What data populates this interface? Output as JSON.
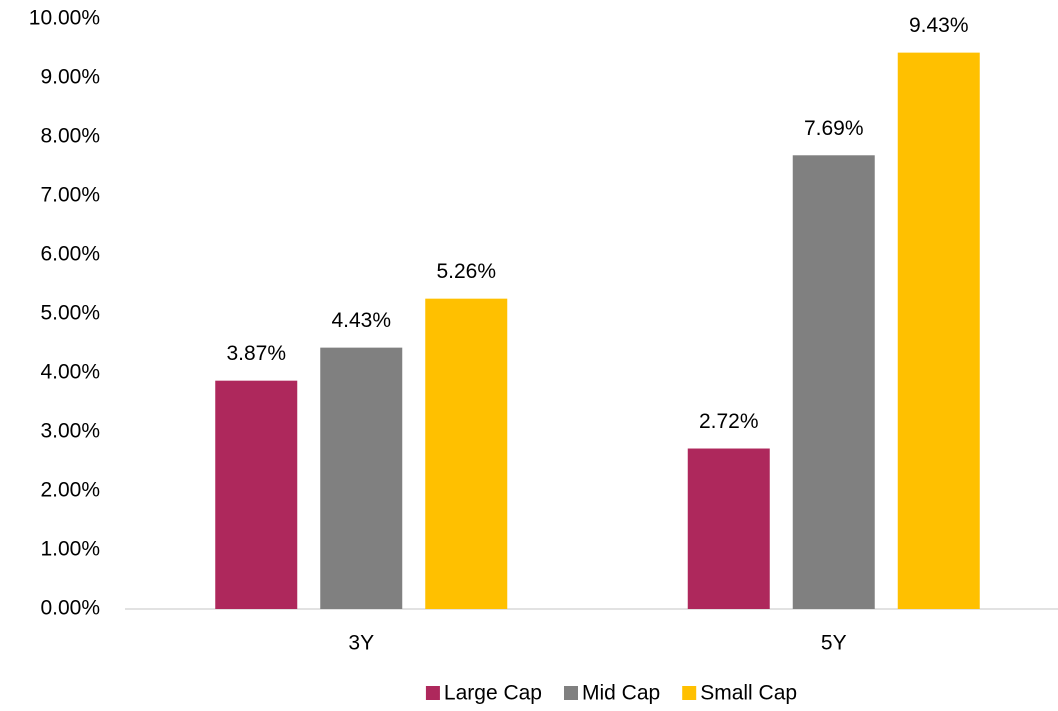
{
  "chart_data": {
    "type": "bar",
    "categories": [
      "3Y",
      "5Y"
    ],
    "series": [
      {
        "name": "Large Cap",
        "color": "#ae285c",
        "values": [
          3.87,
          2.72
        ],
        "value_labels": [
          "3.87%",
          "2.72%"
        ]
      },
      {
        "name": "Mid Cap",
        "color": "#808080",
        "values": [
          4.43,
          7.69
        ],
        "value_labels": [
          "4.43%",
          "7.69%"
        ]
      },
      {
        "name": "Small Cap",
        "color": "#ffc000",
        "values": [
          5.26,
          9.43
        ],
        "value_labels": [
          "5.26%",
          "9.43%"
        ]
      }
    ],
    "ylim": [
      0,
      10
    ],
    "yticks": [
      {
        "value": 0,
        "label": "0.00%"
      },
      {
        "value": 1,
        "label": "1.00%"
      },
      {
        "value": 2,
        "label": "2.00%"
      },
      {
        "value": 3,
        "label": "3.00%"
      },
      {
        "value": 4,
        "label": "4.00%"
      },
      {
        "value": 5,
        "label": "5.00%"
      },
      {
        "value": 6,
        "label": "6.00%"
      },
      {
        "value": 7,
        "label": "7.00%"
      },
      {
        "value": 8,
        "label": "8.00%"
      },
      {
        "value": 9,
        "label": "9.00%"
      },
      {
        "value": 10,
        "label": "10.00%"
      }
    ],
    "grid": false,
    "legend": "bottom"
  }
}
